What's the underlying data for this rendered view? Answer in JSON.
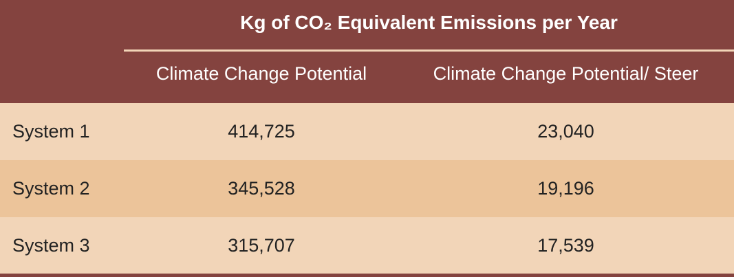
{
  "table": {
    "title": "Kg of CO₂ Equivalent Emissions per Year",
    "columns": [
      "Climate Change Potential",
      "Climate Change Potential/ Steer"
    ],
    "rows": [
      [
        "System 1",
        "414,725",
        "23,040"
      ],
      [
        "System 2",
        "345,528",
        "19,196"
      ],
      [
        "System 3",
        "315,707",
        "17,539"
      ]
    ]
  }
}
